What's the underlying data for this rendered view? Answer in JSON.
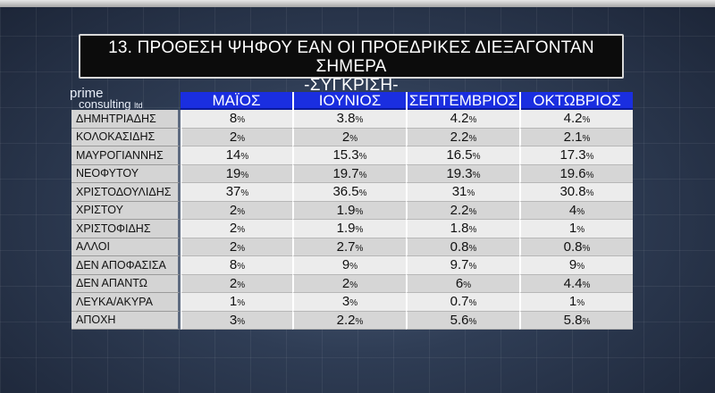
{
  "title": {
    "line1": "13. ΠΡΟΘΕΣΗ ΨΗΦΟΥ ΕΑΝ ΟΙ ΠΡΟΕΔΡΙΚΕΣ ΔΙΕΞΑΓΟΝΤΑΝ ΣΗΜΕΡΑ",
    "line2": "-ΣΥΓΚΡΙΣΗ-"
  },
  "logo": {
    "line1": "prime",
    "line2": "consulting",
    "suffix": "ltd"
  },
  "colors": {
    "header_blue": "#1a2ee0",
    "label_gray": "#d4d4d4",
    "row_light": "#ececec",
    "row_dark": "#d6d6d6",
    "title_bg": "#0c0c0c"
  },
  "chart_data": {
    "type": "table",
    "title": "13. ΠΡΟΘΕΣΗ ΨΗΦΟΥ ΕΑΝ ΟΙ ΠΡΟΕΔΡΙΚΕΣ ΔΙΕΞΑΓΟΝΤΑΝ ΣΗΜΕΡΑ -ΣΥΓΚΡΙΣΗ-",
    "columns": [
      "ΜΑΪΟΣ",
      "ΙΟΥΝΙΟΣ",
      "ΣΕΠΤΕΜΒΡΙΟΣ",
      "ΟΚΤΩΒΡΙΟΣ"
    ],
    "rows": [
      {
        "label": "ΔΗΜΗΤΡΙΑΔΗΣ",
        "values": [
          "8",
          "3.8",
          "4.2",
          "4.2"
        ]
      },
      {
        "label": "ΚΟΛΟΚΑΣΙΔΗΣ",
        "values": [
          "2",
          "2",
          "2.2",
          "2.1"
        ]
      },
      {
        "label": "ΜΑΥΡΟΓΙΑΝΝΗΣ",
        "values": [
          "14",
          "15.3",
          "16.5",
          "17.3"
        ]
      },
      {
        "label": "ΝΕΟΦΥΤΟΥ",
        "values": [
          "19",
          "19.7",
          "19.3",
          "19.6"
        ]
      },
      {
        "label": "ΧΡΙΣΤΟΔΟΥΛΙΔΗΣ",
        "values": [
          "37",
          "36.5",
          "31",
          "30.8"
        ]
      },
      {
        "label": "ΧΡΙΣΤΟΥ",
        "values": [
          "2",
          "1.9",
          "2.2",
          "4"
        ]
      },
      {
        "label": "ΧΡΙΣΤΟΦΙΔΗΣ",
        "values": [
          "2",
          "1.9",
          "1.8",
          "1"
        ]
      },
      {
        "label": "ΑΛΛΟΙ",
        "values": [
          "2",
          "2.7",
          "0.8",
          "0.8"
        ]
      },
      {
        "label": "ΔΕΝ ΑΠΟΦΑΣΙΣΑ",
        "values": [
          "8",
          "9",
          "9.7",
          "9"
        ]
      },
      {
        "label": "ΔΕΝ ΑΠΑΝΤΩ",
        "values": [
          "2",
          "2",
          "6",
          "4.4"
        ]
      },
      {
        "label": "ΛΕΥΚΑ/ΑΚΥΡΑ",
        "values": [
          "1",
          "3",
          "0.7",
          "1"
        ]
      },
      {
        "label": "ΑΠΟΧΗ",
        "values": [
          "3",
          "2.2",
          "5.6",
          "5.8"
        ]
      }
    ],
    "unit": "%"
  }
}
